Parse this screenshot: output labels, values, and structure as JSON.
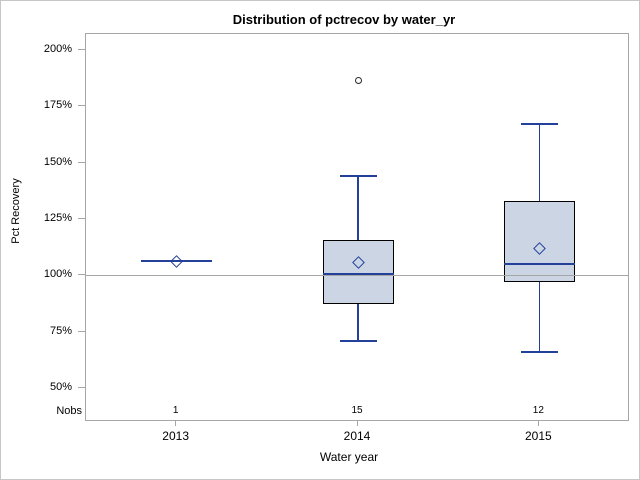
{
  "title": "Distribution of pctrecov by water_yr",
  "x_axis": {
    "label": "Water year"
  },
  "y_axis": {
    "label": "Pct Recovery"
  },
  "nobs_row_label": "Nobs",
  "colors": {
    "box_fill": "#ccd5e4",
    "box_border": "#000000",
    "marker_blue": "#23409a",
    "frame_gray": "#a6a6a6",
    "outlier_black": "#2a2a2a",
    "text": "#000000"
  },
  "chart_data": {
    "type": "box",
    "title": "Distribution of pctrecov by water_yr",
    "xlabel": "Water year",
    "ylabel": "Pct Recovery",
    "ylim": [
      35,
      207
    ],
    "yticks": [
      200,
      175,
      150,
      125,
      100,
      75,
      50
    ],
    "ytick_labels": [
      "200%",
      "175%",
      "150%",
      "125%",
      "100%",
      "75%",
      "50%"
    ],
    "reference_line": 100,
    "grid": false,
    "legend": false,
    "categories": [
      "2013",
      "2014",
      "2015"
    ],
    "nobs": [
      "1",
      "15",
      "12"
    ],
    "boxes": [
      {
        "category": "2013",
        "n": 1,
        "single_value": 106.3,
        "mean": 106.3
      },
      {
        "category": "2014",
        "n": 15,
        "low": 71,
        "q1": 87.5,
        "median": 100.4,
        "q3": 115.5,
        "high": 144,
        "mean": 105.6,
        "outliers": [
          186.5
        ]
      },
      {
        "category": "2015",
        "n": 12,
        "low": 66,
        "q1": 97,
        "median": 105,
        "q3": 133,
        "high": 167,
        "mean": 112,
        "outliers": []
      }
    ]
  }
}
